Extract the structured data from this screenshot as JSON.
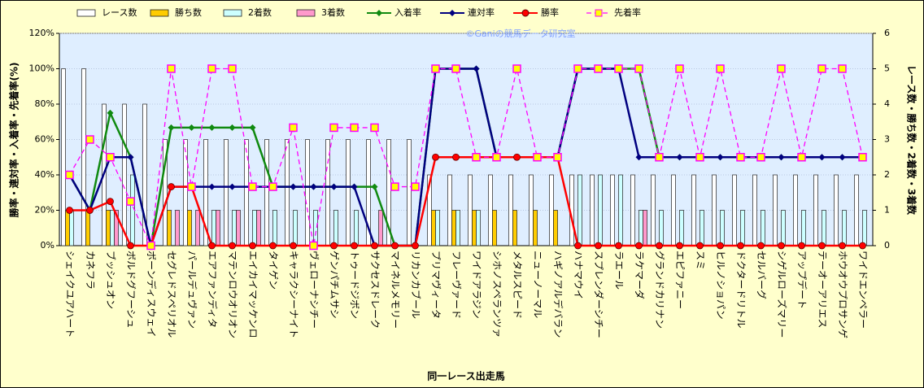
{
  "chart_data": {
    "type": "combo",
    "watermark": "©Ganiの競馬データ研究室",
    "x_label": "同一レース出走馬",
    "y_label": "勝率・連対率・入着率・先着率(%)",
    "y2_label": "レース数・勝ち数・2着数・3着数",
    "categories": [
      "シェイクユアハート",
      "カネフラ",
      "ブッシュオン",
      "ボルドグフーシュ",
      "ボーンディスウェイ",
      "セグレドスペリオル",
      "パールデュヴァン",
      "エアファンディタ",
      "マテンロウオリオン",
      "エイカイマッケンロ",
      "タイゲン",
      "キャラクシーナイト",
      "ヴェローナシチー",
      "ゲンパチムサシ",
      "トゥードジボン",
      "サクセスドレーク",
      "マイネルメモリー",
      "リカンカブール",
      "プリマヴィータ",
      "フレーヴァード",
      "ワイドアラジン",
      "シホノスペランツァ",
      "メタルスピード",
      "ニューノーマル",
      "ハギノアルデバラン",
      "ハナマウイ",
      "スプレンダーシチー",
      "ラエール",
      "ラケマーダ",
      "グランドカリナン",
      "エピファニー",
      "スミ",
      "ヒルノショパン",
      "ドクタードリトル",
      "セルバーグ",
      "シゲルローズマリー",
      "アップデート",
      "テーオーアリエス",
      "ホウオウプロサンゲ",
      "ワイドエンペラー"
    ],
    "ylim": [
      0,
      120
    ],
    "yticks": [
      {
        "value": 0,
        "label": "0%"
      },
      {
        "value": 20,
        "label": "20%"
      },
      {
        "value": 40,
        "label": "40%"
      },
      {
        "value": 60,
        "label": "60%"
      },
      {
        "value": 80,
        "label": "80%"
      },
      {
        "value": 100,
        "label": "100%"
      },
      {
        "value": 120,
        "label": "120%"
      }
    ],
    "y2lim": [
      0,
      6
    ],
    "y2ticks": [
      0,
      1,
      2,
      3,
      4,
      5,
      6
    ],
    "grid": true,
    "legend": "top",
    "series": [
      {
        "name": "レース数",
        "type": "bar",
        "axis": "y2",
        "color": "#ffffff",
        "values": [
          5,
          5,
          4,
          4,
          4,
          3,
          3,
          3,
          3,
          3,
          3,
          3,
          3,
          3,
          3,
          3,
          3,
          3,
          2,
          2,
          2,
          2,
          2,
          2,
          2,
          2,
          2,
          2,
          2,
          2,
          2,
          2,
          2,
          2,
          2,
          2,
          2,
          2,
          2,
          2
        ]
      },
      {
        "name": "勝ち数",
        "type": "bar",
        "axis": "y2",
        "color": "#ffcc00",
        "values": [
          1,
          1,
          1,
          0,
          0,
          1,
          1,
          0,
          0,
          0,
          0,
          0,
          0,
          0,
          0,
          0,
          0,
          0,
          1,
          1,
          1,
          1,
          1,
          1,
          1,
          0,
          0,
          0,
          0,
          0,
          0,
          0,
          0,
          0,
          0,
          0,
          0,
          0,
          0,
          0
        ]
      },
      {
        "name": "2着数",
        "type": "bar",
        "axis": "y2",
        "color": "#ccffff",
        "values": [
          1,
          0,
          1,
          2,
          0,
          0,
          0,
          1,
          1,
          1,
          1,
          1,
          1,
          1,
          1,
          0,
          0,
          0,
          1,
          1,
          1,
          0,
          0,
          0,
          0,
          2,
          2,
          2,
          1,
          1,
          1,
          1,
          1,
          1,
          1,
          1,
          1,
          1,
          1,
          1
        ]
      },
      {
        "name": "3着数",
        "type": "bar",
        "axis": "y2",
        "color": "#ff99cc",
        "values": [
          0,
          0,
          1,
          0,
          0,
          1,
          1,
          1,
          1,
          1,
          0,
          0,
          0,
          0,
          0,
          1,
          0,
          0,
          0,
          0,
          0,
          0,
          0,
          0,
          0,
          0,
          0,
          0,
          1,
          0,
          0,
          0,
          0,
          0,
          0,
          0,
          0,
          0,
          0,
          0
        ]
      },
      {
        "name": "入着率",
        "type": "line",
        "color": "#108a10",
        "marker": "diamond",
        "values": [
          40,
          20,
          75,
          50,
          0,
          66.7,
          66.7,
          66.7,
          66.7,
          66.7,
          33.3,
          33.3,
          33.3,
          33.3,
          33.3,
          33.3,
          0,
          0,
          100,
          100,
          100,
          50,
          50,
          50,
          50,
          100,
          100,
          100,
          100,
          50,
          50,
          50,
          50,
          50,
          50,
          50,
          50,
          50,
          50,
          50
        ]
      },
      {
        "name": "連対率",
        "type": "line",
        "color": "#000080",
        "marker": "diamond",
        "values": [
          40,
          20,
          50,
          50,
          0,
          33.3,
          33.3,
          33.3,
          33.3,
          33.3,
          33.3,
          33.3,
          33.3,
          33.3,
          33.3,
          0,
          0,
          0,
          100,
          100,
          100,
          50,
          50,
          50,
          50,
          100,
          100,
          100,
          50,
          50,
          50,
          50,
          50,
          50,
          50,
          50,
          50,
          50,
          50,
          50
        ]
      },
      {
        "name": "勝率",
        "type": "line",
        "color": "#ff0000",
        "marker": "circle",
        "values": [
          20,
          20,
          25,
          0,
          0,
          33.3,
          33.3,
          0,
          0,
          0,
          0,
          0,
          0,
          0,
          0,
          0,
          0,
          0,
          50,
          50,
          50,
          50,
          50,
          50,
          50,
          0,
          0,
          0,
          0,
          0,
          0,
          0,
          0,
          0,
          0,
          0,
          0,
          0,
          0,
          0
        ]
      },
      {
        "name": "先着率",
        "type": "line",
        "color": "#ff00ff",
        "marker": "square",
        "dashed": true,
        "values": [
          40,
          60,
          50,
          25,
          0,
          100,
          33.3,
          100,
          100,
          33.3,
          33.3,
          66.7,
          0,
          66.7,
          66.7,
          66.7,
          33.3,
          33.3,
          100,
          100,
          50,
          50,
          100,
          50,
          50,
          100,
          100,
          100,
          100,
          50,
          100,
          50,
          100,
          50,
          50,
          100,
          50,
          100,
          100,
          50
        ]
      }
    ]
  }
}
